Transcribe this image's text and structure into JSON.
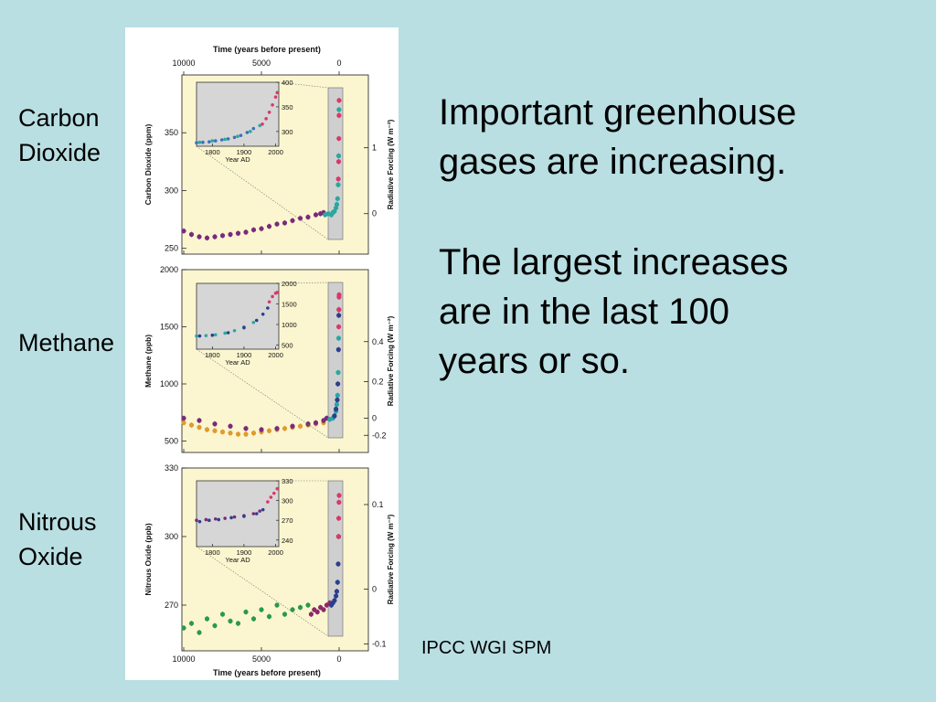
{
  "labels": {
    "co2": [
      "Carbon",
      "Dioxide"
    ],
    "methane": "Methane",
    "n2o": [
      "Nitrous",
      "Oxide"
    ]
  },
  "text": {
    "line1": "Important greenhouse",
    "line2": "gases are increasing.",
    "line3": "The largest increases",
    "line4": "are in the last 100",
    "line5": "years or so."
  },
  "citation": "IPCC WGI SPM",
  "chart_data": [
    {
      "type": "scatter",
      "panel": "co2",
      "x_top_title": "Time (years before present)",
      "x_ticks": [
        "10000",
        "5000",
        "0"
      ],
      "ylabel": "Carbon Dioxide (ppm)",
      "y_ticks": [
        250,
        300,
        350
      ],
      "ylim": [
        245,
        400
      ],
      "y2label": "Radiative Forcing (W m⁻²)",
      "y2_ticks": [
        "0",
        "1"
      ],
      "y2_values": [
        280,
        337
      ],
      "xlim": [
        10000,
        0
      ],
      "series": [
        {
          "color": "#7b2a7b",
          "x": [
            10000,
            9500,
            9000,
            8500,
            8000,
            7500,
            7000,
            6500,
            6000,
            5500,
            5000,
            4500,
            4000,
            3500,
            3000,
            2500,
            2000,
            1500,
            1200,
            1000
          ],
          "y": [
            265,
            262,
            260,
            259,
            260,
            261,
            262,
            263,
            264,
            266,
            267,
            269,
            271,
            272,
            274,
            276,
            277,
            279,
            280,
            281
          ]
        },
        {
          "color": "#2aa7a0",
          "x": [
            900,
            700,
            500,
            400,
            300,
            200,
            150,
            100,
            60,
            30,
            10
          ],
          "y": [
            279,
            280,
            279,
            281,
            282,
            285,
            288,
            293,
            305,
            330,
            370
          ]
        },
        {
          "color": "#d63a6a",
          "x": [
            50,
            30,
            15,
            5,
            0
          ],
          "y": [
            310,
            325,
            345,
            365,
            378
          ]
        }
      ],
      "inset": {
        "xlabel": "Year AD",
        "x_ticks": [
          1800,
          1900,
          2000
        ],
        "xlim": [
          1750,
          2010
        ],
        "y_ticks": [
          300,
          350,
          400
        ],
        "ylim": [
          270,
          400
        ],
        "series": [
          {
            "color": "#3c6fb8",
            "x": [
              1750,
              1770,
              1790,
              1810,
              1830,
              1850,
              1870,
              1890,
              1910,
              1930
            ],
            "y": [
              277,
              278,
              279,
              281,
              283,
              285,
              288,
              292,
              298,
              306
            ]
          },
          {
            "color": "#2aa7a0",
            "x": [
              1760,
              1800,
              1840,
              1880,
              1920,
              1950
            ],
            "y": [
              278,
              281,
              284,
              290,
              300,
              312
            ]
          },
          {
            "color": "#d63a6a",
            "x": [
              1958,
              1970,
              1980,
              1990,
              2000,
              2005
            ],
            "y": [
              315,
              326,
              339,
              354,
              370,
              379
            ]
          }
        ]
      }
    },
    {
      "type": "scatter",
      "panel": "methane",
      "ylabel": "Methane (ppb)",
      "y_ticks": [
        500,
        1000,
        1500,
        2000
      ],
      "ylim": [
        400,
        2000
      ],
      "y2label": "Radiative Forcing (W m⁻²)",
      "y2_ticks": [
        "-0.2",
        "0",
        "0.2",
        "0.4"
      ],
      "y2_values": [
        550,
        700,
        1020,
        1370
      ],
      "xlim": [
        10000,
        0
      ],
      "series": [
        {
          "color": "#e09a2e",
          "x": [
            10000,
            9500,
            9000,
            8500,
            8000,
            7500,
            7000,
            6500,
            6000,
            5500,
            5000,
            4500,
            4000,
            3500,
            3000,
            2500,
            2000,
            1500,
            1000
          ],
          "y": [
            660,
            640,
            620,
            600,
            590,
            580,
            570,
            560,
            560,
            570,
            580,
            590,
            600,
            610,
            620,
            630,
            640,
            650,
            660
          ]
        },
        {
          "color": "#7b2a7b",
          "x": [
            10000,
            9000,
            8000,
            7000,
            6000,
            5000,
            4000,
            3000,
            2000,
            1500,
            1000,
            800
          ],
          "y": [
            700,
            680,
            650,
            630,
            610,
            600,
            610,
            630,
            650,
            660,
            680,
            700
          ]
        },
        {
          "color": "#2aa7a0",
          "x": [
            600,
            400,
            300,
            200,
            150,
            100,
            60,
            30,
            10
          ],
          "y": [
            690,
            700,
            720,
            760,
            820,
            900,
            1100,
            1400,
            1650
          ]
        },
        {
          "color": "#2b3f8c",
          "x": [
            300,
            200,
            120,
            80,
            40,
            20
          ],
          "y": [
            720,
            780,
            860,
            1000,
            1300,
            1600
          ]
        },
        {
          "color": "#d63a6a",
          "x": [
            25,
            15,
            5,
            0
          ],
          "y": [
            1500,
            1650,
            1760,
            1780
          ]
        }
      ],
      "inset": {
        "xlabel": "Year AD",
        "x_ticks": [
          1800,
          1900,
          2000
        ],
        "xlim": [
          1750,
          2010
        ],
        "y_ticks": [
          500,
          1000,
          1500,
          2000
        ],
        "ylim": [
          400,
          2000
        ],
        "series": [
          {
            "color": "#2aa7a0",
            "x": [
              1750,
              1780,
              1810,
              1840,
              1870,
              1900,
              1930
            ],
            "y": [
              720,
              730,
              750,
              790,
              850,
              940,
              1050
            ]
          },
          {
            "color": "#2b3f8c",
            "x": [
              1760,
              1800,
              1850,
              1900,
              1940,
              1960,
              1975
            ],
            "y": [
              720,
              740,
              800,
              920,
              1100,
              1250,
              1400
            ]
          },
          {
            "color": "#d63a6a",
            "x": [
              1980,
              1990,
              2000,
              2005
            ],
            "y": [
              1550,
              1680,
              1760,
              1780
            ]
          }
        ]
      }
    },
    {
      "type": "scatter",
      "panel": "n2o",
      "ylabel": "Nitrous Oxide (ppb)",
      "y_ticks": [
        270,
        300,
        330
      ],
      "ylim": [
        250,
        330
      ],
      "y2label": "Radiative Forcing (W m⁻²)",
      "y2_ticks": [
        "-0.1",
        "0",
        "0.1"
      ],
      "y2_values": [
        253,
        277,
        314
      ],
      "xlim": [
        10000,
        0
      ],
      "series": [
        {
          "color": "#2a9a4a",
          "x": [
            10000,
            9500,
            9000,
            8500,
            8000,
            7500,
            7000,
            6500,
            6000,
            5500,
            5000,
            4500,
            4000,
            3500,
            3000,
            2500,
            2000
          ],
          "y": [
            260,
            262,
            258,
            264,
            261,
            266,
            263,
            262,
            267,
            264,
            268,
            265,
            270,
            266,
            268,
            269,
            270
          ]
        },
        {
          "color": "#8a2a6a",
          "x": [
            1800,
            1600,
            1400,
            1200,
            1000,
            800,
            600
          ],
          "y": [
            266,
            268,
            267,
            269,
            268,
            270,
            271
          ]
        },
        {
          "color": "#2b3f8c",
          "x": [
            500,
            400,
            300,
            200,
            150,
            100,
            60,
            30
          ],
          "y": [
            270,
            271,
            272,
            274,
            276,
            280,
            288,
            300
          ]
        },
        {
          "color": "#d63a6a",
          "x": [
            40,
            25,
            10,
            0
          ],
          "y": [
            300,
            308,
            315,
            318
          ]
        }
      ],
      "inset": {
        "xlabel": "Year AD",
        "x_ticks": [
          1800,
          1900,
          2000
        ],
        "xlim": [
          1750,
          2010
        ],
        "y_ticks": [
          240,
          270,
          300,
          330
        ],
        "ylim": [
          230,
          330
        ],
        "series": [
          {
            "color": "#7b2a7b",
            "x": [
              1750,
              1780,
              1810,
              1840,
              1870,
              1900,
              1930,
              1950
            ],
            "y": [
              270,
              271,
              272,
              273,
              275,
              277,
              280,
              284
            ]
          },
          {
            "color": "#2b3f8c",
            "x": [
              1760,
              1790,
              1820,
              1860,
              1900,
              1940,
              1960
            ],
            "y": [
              268,
              270,
              271,
              274,
              276,
              280,
              286
            ]
          },
          {
            "color": "#d63a6a",
            "x": [
              1975,
              1985,
              1995,
              2005
            ],
            "y": [
              298,
              305,
              311,
              318
            ]
          }
        ]
      }
    }
  ],
  "bottom_axis": {
    "title": "Time (years before present)",
    "ticks": [
      "10000",
      "5000",
      "0"
    ]
  }
}
